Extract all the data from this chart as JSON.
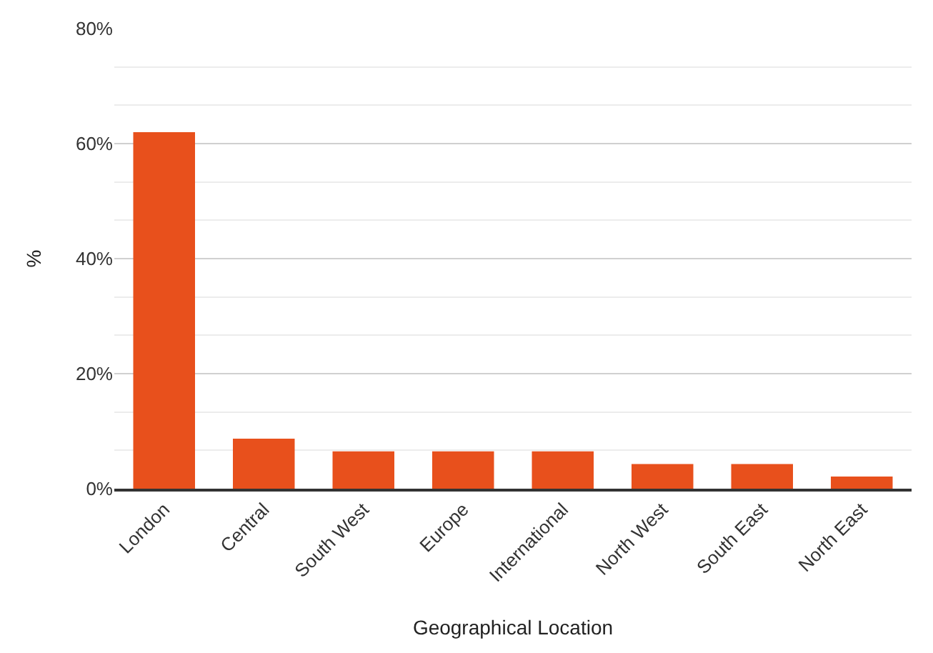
{
  "chart_data": {
    "type": "bar",
    "xlabel": "Geographical Location",
    "ylabel": "%",
    "categories": [
      "London",
      "Central",
      "South West",
      "Europe",
      "International",
      "North West",
      "South East",
      "North East"
    ],
    "values": [
      62,
      8.7,
      6.5,
      6.5,
      6.5,
      4.3,
      4.3,
      2.1
    ],
    "color": "#e8501c",
    "ylim": [
      0,
      80
    ],
    "yticks": [
      {
        "value": 0,
        "label": "0%"
      },
      {
        "value": 20,
        "label": "20%"
      },
      {
        "value": 40,
        "label": "40%"
      },
      {
        "value": 60,
        "label": "60%"
      },
      {
        "value": 80,
        "label": "80%"
      }
    ],
    "grid": "y",
    "legend": false
  }
}
